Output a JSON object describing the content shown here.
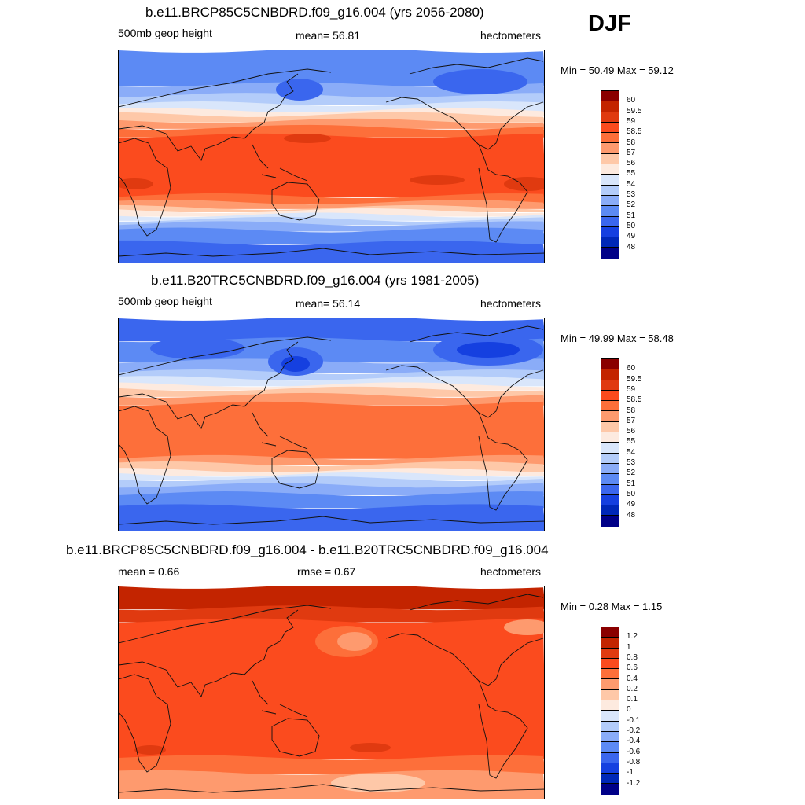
{
  "season": "DJF",
  "panels": [
    {
      "title": "b.e11.BRCP85C5CNBDRD.f09_g16.004 (yrs 2056-2080)",
      "left_label": "500mb geop height",
      "center_label": "mean=  56.81",
      "right_label": "hectometers",
      "minmax": "Min =  50.49 Max =  59.12",
      "kind": "abs_future"
    },
    {
      "title": "b.e11.B20TRC5CNBDRD.f09_g16.004 (yrs 1981-2005)",
      "left_label": "500mb geop height",
      "center_label": "mean=  56.14",
      "right_label": "hectometers",
      "minmax": "Min =  49.99 Max =  58.48",
      "kind": "abs_hist"
    },
    {
      "title": "b.e11.BRCP85C5CNBDRD.f09_g16.004 - b.e11.B20TRC5CNBDRD.f09_g16.004",
      "left_label": "mean =   0.66",
      "center_label": "rmse =   0.67",
      "right_label": "hectometers",
      "minmax": "Min =   0.28 Max =   1.15",
      "kind": "diff"
    }
  ],
  "legends": {
    "abs": {
      "labels": [
        "60",
        "59.5",
        "59",
        "58.5",
        "58",
        "57",
        "56",
        "55",
        "54",
        "53",
        "52",
        "51",
        "50",
        "49",
        "48"
      ],
      "colors": [
        "#8a0000",
        "#c32400",
        "#e03a10",
        "#fb4b1e",
        "#fd6f3a",
        "#fe9a6e",
        "#fec8a8",
        "#fdeadf",
        "#d9e6fb",
        "#b3ccfa",
        "#8aacf8",
        "#5c8af4",
        "#3a66ee",
        "#1540e0",
        "#0028b8",
        "#000088"
      ]
    },
    "diff": {
      "labels": [
        "1.2",
        "1",
        "0.8",
        "0.6",
        "0.4",
        "0.2",
        "0.1",
        "0",
        "-0.1",
        "-0.2",
        "-0.4",
        "-0.6",
        "-0.8",
        "-1",
        "-1.2"
      ],
      "colors": [
        "#8a0000",
        "#c32400",
        "#e03a10",
        "#fb4b1e",
        "#fd6f3a",
        "#fe9a6e",
        "#fec8a8",
        "#fdeadf",
        "#d9e6fb",
        "#b3ccfa",
        "#8aacf8",
        "#5c8af4",
        "#3a66ee",
        "#1540e0",
        "#0028b8",
        "#000088"
      ]
    }
  }
}
